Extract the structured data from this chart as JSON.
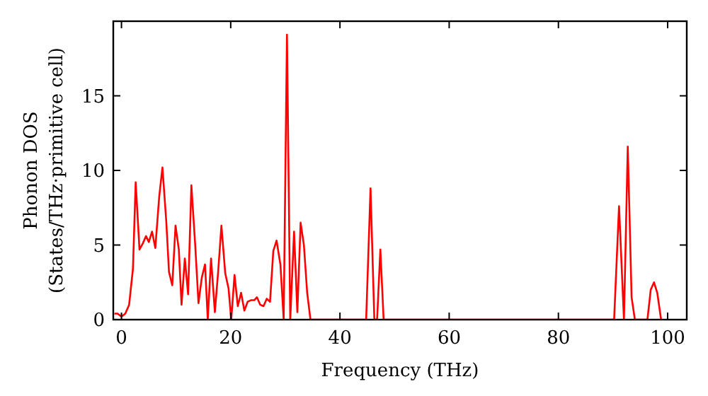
{
  "chart_data": {
    "type": "line",
    "xlabel": "Frequency (THz)",
    "ylabel": "Phonon DOS\n(States/THz·primitive cell)",
    "xlim": [
      -1.5,
      103.5
    ],
    "ylim": [
      0,
      20
    ],
    "xticks": [
      0,
      20,
      40,
      60,
      80,
      100
    ],
    "yticks": [
      0,
      5,
      10,
      15
    ],
    "grid": false,
    "series": [
      {
        "color": "#ff0000",
        "x": [
          -1.3,
          -0.7,
          0,
          0.7,
          1.4,
          2.1,
          2.6,
          3.3,
          3.9,
          4.5,
          5.0,
          5.6,
          6.2,
          6.9,
          7.5,
          8.2,
          8.7,
          9.3,
          9.9,
          10.5,
          11.0,
          11.6,
          12.2,
          12.8,
          13.5,
          14.1,
          14.7,
          15.3,
          15.8,
          16.4,
          17.1,
          17.7,
          18.3,
          19.0,
          19.6,
          20.1,
          20.7,
          21.3,
          21.9,
          22.5,
          23.1,
          23.7,
          24.3,
          24.8,
          25.4,
          26.0,
          26.6,
          27.2,
          27.8,
          28.4,
          29.1,
          29.7,
          30.3,
          30.9,
          31.6,
          32.2,
          32.8,
          33.4,
          34.0,
          34.6,
          44.8,
          45.6,
          46.3,
          46.8,
          47.4,
          48.0,
          90.2,
          91.1,
          92.0,
          92.7,
          93.4,
          94.0,
          96.3,
          96.9,
          97.5,
          98.1,
          98.8
        ],
        "values": [
          0.4,
          0.4,
          0.2,
          0.4,
          1.0,
          3.4,
          9.2,
          4.7,
          5.1,
          5.6,
          5.2,
          5.9,
          4.8,
          8.2,
          10.2,
          6.6,
          3.2,
          2.3,
          6.3,
          4.7,
          1.0,
          4.1,
          1.7,
          9.0,
          5.0,
          1.1,
          2.8,
          3.7,
          0,
          4.1,
          0.5,
          3.2,
          6.3,
          3.1,
          2.1,
          0,
          3.0,
          0.9,
          1.8,
          0.6,
          1.2,
          1.3,
          1.3,
          1.5,
          1.0,
          0.9,
          1.4,
          1.2,
          4.6,
          5.3,
          3.7,
          0,
          19.1,
          0,
          5.9,
          0.5,
          6.5,
          5.0,
          1.8,
          0,
          0,
          8.8,
          0,
          0,
          4.7,
          0,
          0,
          7.6,
          0,
          11.6,
          1.5,
          0,
          0,
          2.0,
          2.5,
          1.8,
          0
        ]
      }
    ]
  }
}
